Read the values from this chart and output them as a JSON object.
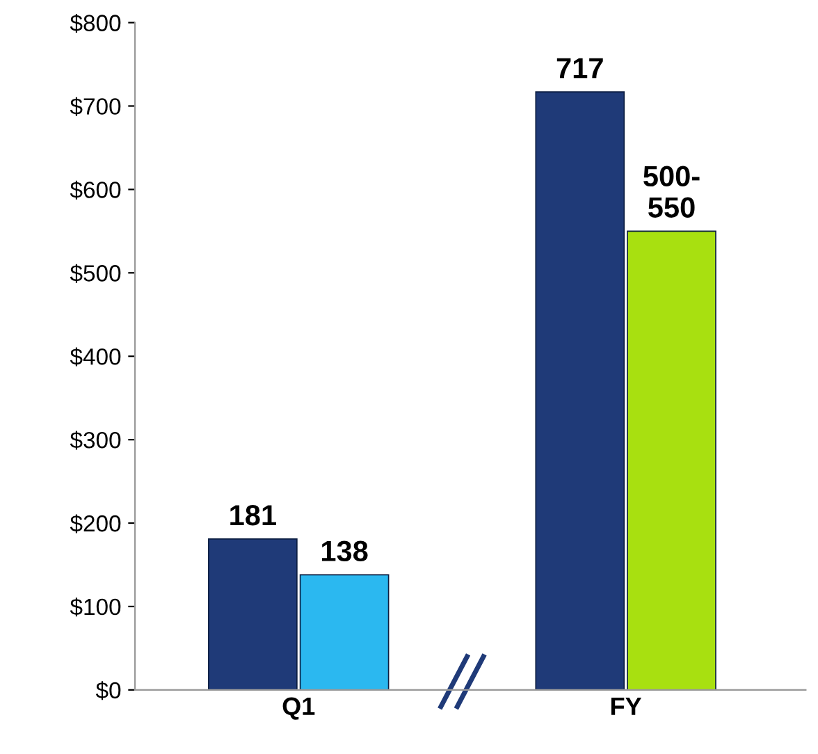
{
  "chart_data": {
    "type": "bar",
    "categories": [
      "Q1",
      "FY"
    ],
    "series": [
      {
        "color": "#1f3a78",
        "values": [
          181,
          717
        ],
        "value_labels": [
          "181",
          "717"
        ]
      },
      {
        "colors": [
          "#2bb8f0",
          "#a8e010"
        ],
        "values": [
          138,
          550
        ],
        "value_labels": [
          "138",
          "500-\n550"
        ]
      }
    ],
    "ylim": [
      0,
      800
    ],
    "yticks": [
      {
        "value": 0,
        "label": "$0"
      },
      {
        "value": 100,
        "label": "$100"
      },
      {
        "value": 200,
        "label": "$200"
      },
      {
        "value": 300,
        "label": "$300"
      },
      {
        "value": 400,
        "label": "$400"
      },
      {
        "value": 500,
        "label": "$500"
      },
      {
        "value": 600,
        "label": "$600"
      },
      {
        "value": 700,
        "label": "$700"
      },
      {
        "value": 800,
        "label": "$800"
      }
    ],
    "grid": false,
    "legend": false
  }
}
